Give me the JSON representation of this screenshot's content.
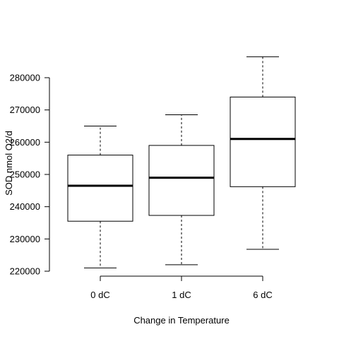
{
  "chart_data": {
    "type": "box",
    "title": "",
    "xlabel": "Change in Temperature",
    "ylabel": "SOD nmol O2/d",
    "categories": [
      "0 dC",
      "1 dC",
      "6 dC"
    ],
    "boxes": [
      {
        "category": "0 dC",
        "whisker_low": 221000,
        "q1": 235500,
        "median": 246500,
        "q3": 256000,
        "whisker_high": 265000
      },
      {
        "category": "1 dC",
        "whisker_low": 222000,
        "q1": 237300,
        "median": 249000,
        "q3": 259000,
        "whisker_high": 268500
      },
      {
        "category": "6 dC",
        "whisker_low": 226800,
        "q1": 246200,
        "median": 261000,
        "q3": 274000,
        "whisker_high": 286500
      }
    ],
    "y_ticks": [
      220000,
      230000,
      240000,
      250000,
      260000,
      270000,
      280000
    ],
    "y_tick_labels": [
      "220000",
      "230000",
      "240000",
      "250000",
      "260000",
      "270000",
      "280000"
    ],
    "ylim": [
      220000,
      286500
    ],
    "grid": false,
    "legend": "none"
  }
}
